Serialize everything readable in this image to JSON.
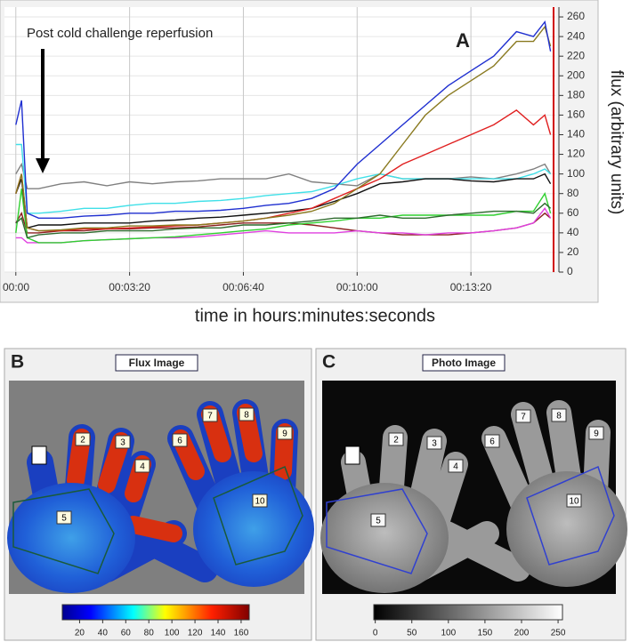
{
  "chart_data": {
    "type": "line",
    "annotation": "Post cold challenge reperfusion",
    "panel_label": "A",
    "y_label": "flux (arbitrary units)",
    "x_label": "time in hours:minutes:seconds",
    "x": [
      0,
      10,
      20,
      40,
      80,
      120,
      160,
      200,
      240,
      280,
      320,
      360,
      400,
      440,
      480,
      520,
      560,
      600,
      640,
      680,
      720,
      760,
      800,
      840,
      880,
      910,
      930,
      940
    ],
    "xlim": [
      -20,
      950
    ],
    "xticks": [
      {
        "value": 0,
        "label": "00:00"
      },
      {
        "value": 200,
        "label": "00:03:20"
      },
      {
        "value": 400,
        "label": "00:06:40"
      },
      {
        "value": 600,
        "label": "00:10:00"
      },
      {
        "value": 800,
        "label": "00:13:20"
      }
    ],
    "ylim": [
      0,
      270
    ],
    "yticks": [
      0,
      20,
      40,
      60,
      80,
      100,
      120,
      140,
      160,
      180,
      200,
      220,
      240,
      260
    ],
    "grid": true,
    "series": [
      {
        "color": "#808080",
        "values": [
          100,
          110,
          85,
          85,
          90,
          92,
          88,
          92,
          90,
          92,
          93,
          95,
          95,
          95,
          100,
          92,
          90,
          88,
          100,
          95,
          95,
          95,
          97,
          95,
          100,
          105,
          110,
          100
        ]
      },
      {
        "color": "#40e0e8",
        "values": [
          130,
          130,
          60,
          60,
          62,
          65,
          65,
          68,
          70,
          70,
          72,
          73,
          75,
          78,
          80,
          82,
          88,
          95,
          100,
          95,
          95,
          95,
          95,
          95,
          95,
          100,
          105,
          100
        ]
      },
      {
        "color": "#8b2020",
        "values": [
          50,
          60,
          40,
          40,
          42,
          42,
          44,
          44,
          45,
          45,
          46,
          48,
          50,
          50,
          50,
          48,
          45,
          42,
          40,
          38,
          38,
          38,
          40,
          42,
          45,
          50,
          60,
          55
        ]
      },
      {
        "color": "#e040e0",
        "values": [
          35,
          35,
          30,
          30,
          30,
          32,
          33,
          34,
          35,
          35,
          36,
          38,
          40,
          42,
          40,
          40,
          40,
          42,
          40,
          40,
          38,
          40,
          40,
          42,
          45,
          50,
          65,
          55
        ]
      },
      {
        "color": "#30d030",
        "values": [
          40,
          85,
          35,
          30,
          30,
          32,
          33,
          34,
          35,
          36,
          38,
          40,
          42,
          44,
          48,
          50,
          52,
          55,
          55,
          58,
          58,
          58,
          58,
          58,
          62,
          62,
          80,
          60
        ]
      },
      {
        "color": "#2e6b2e",
        "values": [
          50,
          55,
          35,
          38,
          40,
          40,
          42,
          42,
          42,
          44,
          45,
          45,
          48,
          48,
          50,
          52,
          55,
          55,
          58,
          55,
          55,
          58,
          60,
          62,
          62,
          60,
          70,
          65
        ]
      },
      {
        "color": "#111111",
        "values": [
          80,
          95,
          45,
          48,
          48,
          50,
          50,
          50,
          52,
          53,
          55,
          56,
          58,
          60,
          62,
          65,
          72,
          80,
          90,
          92,
          95,
          95,
          93,
          92,
          95,
          95,
          100,
          90
        ]
      },
      {
        "color": "#e02020",
        "values": [
          80,
          100,
          45,
          42,
          42,
          44,
          44,
          45,
          46,
          47,
          48,
          50,
          52,
          55,
          60,
          65,
          75,
          85,
          95,
          110,
          120,
          130,
          140,
          150,
          165,
          150,
          160,
          140
        ]
      },
      {
        "color": "#8a7a20",
        "values": [
          80,
          100,
          45,
          42,
          43,
          45,
          45,
          47,
          47,
          48,
          48,
          50,
          52,
          55,
          58,
          62,
          70,
          85,
          100,
          130,
          160,
          180,
          195,
          210,
          235,
          235,
          250,
          230
        ]
      },
      {
        "color": "#1f2fd0",
        "values": [
          150,
          175,
          60,
          55,
          55,
          57,
          58,
          60,
          60,
          62,
          62,
          63,
          65,
          68,
          70,
          75,
          85,
          110,
          130,
          150,
          170,
          190,
          205,
          220,
          245,
          240,
          255,
          225
        ]
      }
    ]
  },
  "panels": [
    {
      "label": "B",
      "title": "Flux Image",
      "roi_labels": [
        "2",
        "3",
        "4",
        "5",
        "6",
        "7",
        "8",
        "9",
        "10"
      ],
      "colorbar": {
        "lim": [
          5,
          167
        ],
        "ticks": [
          20,
          40,
          60,
          80,
          100,
          120,
          140,
          160
        ]
      }
    },
    {
      "label": "C",
      "title": "Photo Image",
      "roi_labels": [
        "2",
        "3",
        "4",
        "5",
        "6",
        "7",
        "8",
        "9",
        "10"
      ],
      "colorbar": {
        "lim": [
          -2,
          256
        ],
        "ticks": [
          0,
          50,
          100,
          150,
          200,
          250
        ]
      }
    }
  ]
}
